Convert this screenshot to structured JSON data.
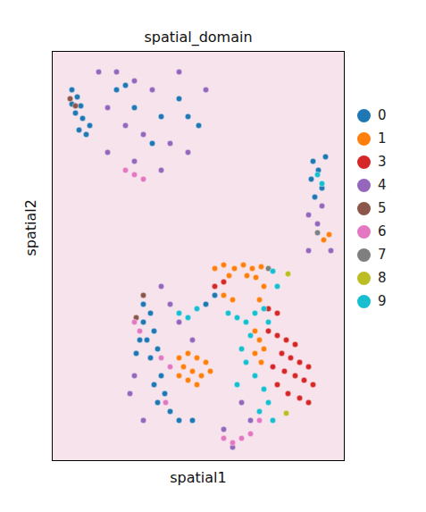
{
  "chart_data": {
    "type": "scatter",
    "title": "spatial_domain",
    "x_label": "spatial1",
    "y_label": "spatial2",
    "xlim": [
      0,
      327
    ],
    "ylim": [
      458,
      0
    ],
    "tick_labels": false,
    "legend": "right",
    "series": [
      {
        "name": "0",
        "color": "#1f77b4",
        "x": [
          22,
          28,
          22,
          32,
          26,
          34,
          42,
          30,
          38,
          72,
          82,
          92,
          122,
          142,
          152,
          112,
          164,
          292,
          298,
          290,
          302,
          294,
          306,
          102,
          110,
          102,
          114,
          106,
          118,
          110,
          122,
          114,
          126,
          118,
          132,
          142,
          98,
          94,
          182,
          172,
          157
        ],
        "y": [
          43,
          51,
          59,
          61,
          69,
          75,
          83,
          88,
          93,
          43,
          38,
          63,
          73,
          53,
          73,
          103,
          83,
          123,
          133,
          143,
          153,
          163,
          118,
          283,
          293,
          303,
          313,
          323,
          333,
          343,
          363,
          373,
          383,
          393,
          403,
          413,
          323,
          338,
          273,
          283,
          413
        ]
      },
      {
        "name": "1",
        "color": "#ff7f0e",
        "x": [
          182,
          192,
          204,
          214,
          224,
          234,
          198,
          218,
          228,
          237,
          232,
          142,
          152,
          162,
          172,
          147,
          157,
          167,
          177,
          152,
          162,
          142,
          227,
          232,
          237,
          227,
          234,
          192,
          202,
          304,
          310
        ],
        "y": [
          243,
          239,
          243,
          239,
          243,
          241,
          251,
          251,
          253,
          263,
          278,
          343,
          338,
          343,
          348,
          353,
          358,
          363,
          358,
          368,
          373,
          363,
          313,
          323,
          333,
          338,
          348,
          273,
          278,
          211,
          205
        ]
      },
      {
        "name": "3",
        "color": "#d62728",
        "x": [
          242,
          252,
          262,
          272,
          257,
          267,
          277,
          247,
          260,
          272,
          282,
          252,
          264,
          277,
          287,
          182,
          192,
          242,
          252,
          287,
          292
        ],
        "y": [
          313,
          318,
          323,
          328,
          338,
          343,
          348,
          353,
          358,
          363,
          368,
          373,
          383,
          388,
          393,
          263,
          258,
          288,
          293,
          353,
          373
        ]
      },
      {
        "name": "4",
        "color": "#9467bd",
        "x": [
          52,
          72,
          92,
          112,
          62,
          82,
          102,
          132,
          152,
          62,
          92,
          142,
          172,
          122,
          287,
          297,
          312,
          287,
          302,
          92,
          87,
          102,
          132,
          142,
          122,
          212,
          222,
          157,
          202,
          192
        ],
        "y": [
          23,
          23,
          33,
          43,
          63,
          83,
          93,
          103,
          113,
          113,
          123,
          23,
          43,
          133,
          183,
          193,
          223,
          223,
          173,
          363,
          383,
          413,
          283,
          303,
          263,
          393,
          413,
          323,
          443,
          423
        ]
      },
      {
        "name": "5",
        "color": "#8c564b",
        "x": [
          20,
          26,
          94,
          102
        ],
        "y": [
          53,
          61,
          298,
          273
        ]
      },
      {
        "name": "6",
        "color": "#e377c2",
        "x": [
          82,
          92,
          102,
          92,
          98,
          122,
          132,
          127,
          192,
          202,
          212,
          222,
          232
        ],
        "y": [
          133,
          138,
          143,
          303,
          313,
          343,
          353,
          393,
          433,
          438,
          433,
          428,
          413
        ]
      },
      {
        "name": "7",
        "color": "#7f7f7f",
        "x": [
          297,
          242
        ],
        "y": [
          203,
          243
        ]
      },
      {
        "name": "8",
        "color": "#bcbd22",
        "x": [
          264,
          262
        ],
        "y": [
          249,
          405
        ]
      },
      {
        "name": "9",
        "color": "#17becf",
        "x": [
          197,
          207,
          217,
          227,
          237,
          242,
          222,
          212,
          217,
          227,
          237,
          242,
          232,
          247,
          142,
          152,
          162,
          207,
          252,
          247,
          297,
          302
        ],
        "y": [
          293,
          298,
          303,
          293,
          288,
          303,
          318,
          333,
          348,
          363,
          378,
          393,
          403,
          413,
          293,
          298,
          288,
          373,
          263,
          246,
          138,
          148
        ]
      }
    ]
  }
}
